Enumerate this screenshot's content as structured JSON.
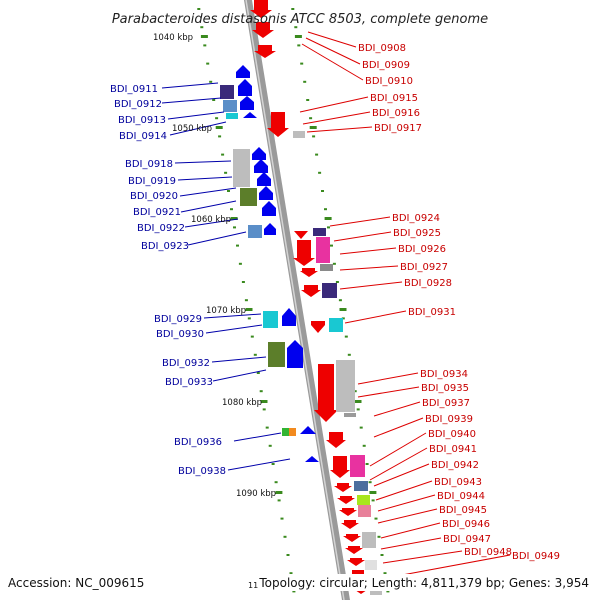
{
  "title": "Parabacteroides distasonis ATCC 8503, complete genome",
  "accession": "Accession: NC_009615",
  "topology": "Topology: circular; Length: 4,811,379 bp; Genes: 3,954",
  "partial_scale_label": "11",
  "scale_labels": [
    "1040 kbp",
    "1050 kbp",
    "1060 kbp",
    "1070 kbp",
    "1080 kbp",
    "1090 kbp"
  ],
  "left_genes": [
    "BDI_0911",
    "BDI_0912",
    "BDI_0913",
    "BDI_0914",
    "BDI_0918",
    "BDI_0919",
    "BDI_0920",
    "BDI_0921",
    "BDI_0922",
    "BDI_0923",
    "BDI_0929",
    "BDI_0930",
    "BDI_0932",
    "BDI_0933",
    "BDI_0936",
    "BDI_0938"
  ],
  "right_genes": [
    "BDI_0908",
    "BDI_0909",
    "BDI_0910",
    "BDI_0915",
    "BDI_0916",
    "BDI_0917",
    "BDI_0924",
    "BDI_0925",
    "BDI_0926",
    "BDI_0927",
    "BDI_0928",
    "BDI_0931",
    "BDI_0934",
    "BDI_0935",
    "BDI_0937",
    "BDI_0939",
    "BDI_0940",
    "BDI_0941",
    "BDI_0942",
    "BDI_0943",
    "BDI_0944",
    "BDI_0945",
    "BDI_0946",
    "BDI_0947",
    "BDI_0948",
    "BDI_0949"
  ],
  "colors": {
    "forward_strand": "#0000ee",
    "reverse_strand": "#ee0000",
    "backbone": "#999999",
    "scale_ticks": "#3a8a1e",
    "left_label": "#00009c",
    "right_label": "#c80000"
  }
}
